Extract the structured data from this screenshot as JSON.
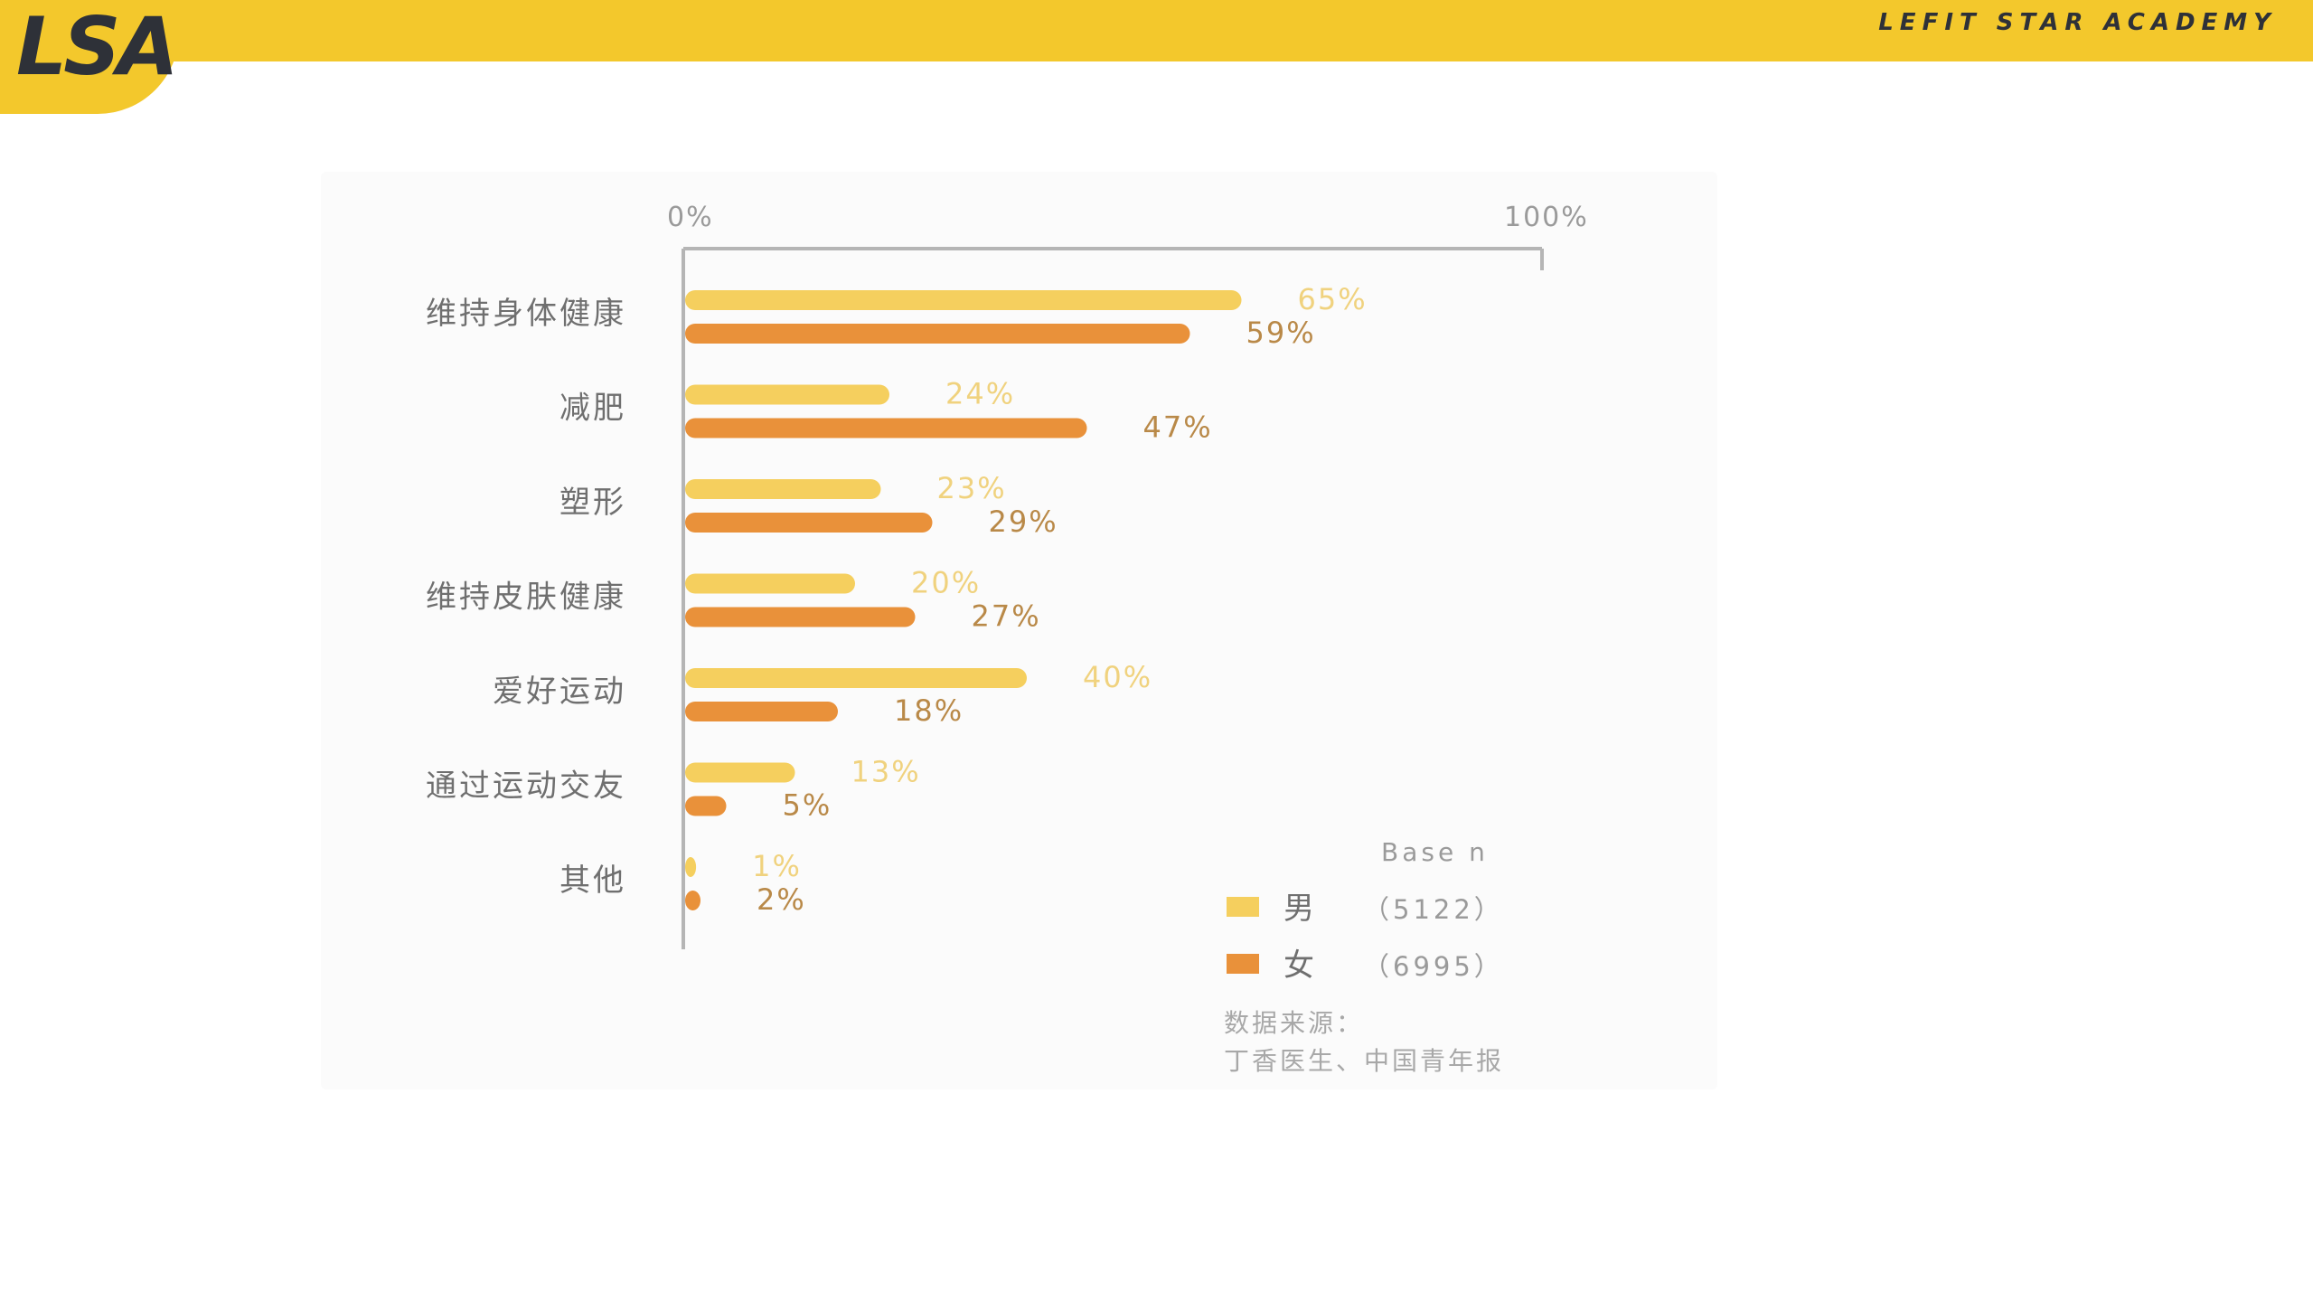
{
  "header": {
    "logo_text": "LSA",
    "brand_name": "LEFIT STAR ACADEMY"
  },
  "colors": {
    "header_bg": "#F3C82C",
    "male_bar": "#F5CF5E",
    "female_bar": "#E9913A",
    "axis": "#B5B5B5",
    "category_text": "#6F6F6F",
    "male_label": "#F0D27E",
    "female_label": "#B98948"
  },
  "chart_data": {
    "type": "bar",
    "orientation": "horizontal",
    "axis_start_label": "0%",
    "axis_end_label": "100%",
    "xlim": [
      0,
      100
    ],
    "categories": [
      "维持身体健康",
      "减肥",
      "塑形",
      "维持皮肤健康",
      "爱好运动",
      "通过运动交友",
      "其他"
    ],
    "series": [
      {
        "name": "男",
        "values": [
          65,
          24,
          23,
          20,
          40,
          13,
          1
        ]
      },
      {
        "name": "女",
        "values": [
          59,
          47,
          29,
          27,
          18,
          5,
          2
        ]
      }
    ],
    "value_suffix": "%",
    "legend": {
      "title": "Base n",
      "position": "bottom-right",
      "entries": [
        {
          "label": "男",
          "count": "（5122）"
        },
        {
          "label": "女",
          "count": "（6995）"
        }
      ]
    },
    "source_label": "数据来源：",
    "source_text": "丁香医生、中国青年报",
    "grid": false
  }
}
